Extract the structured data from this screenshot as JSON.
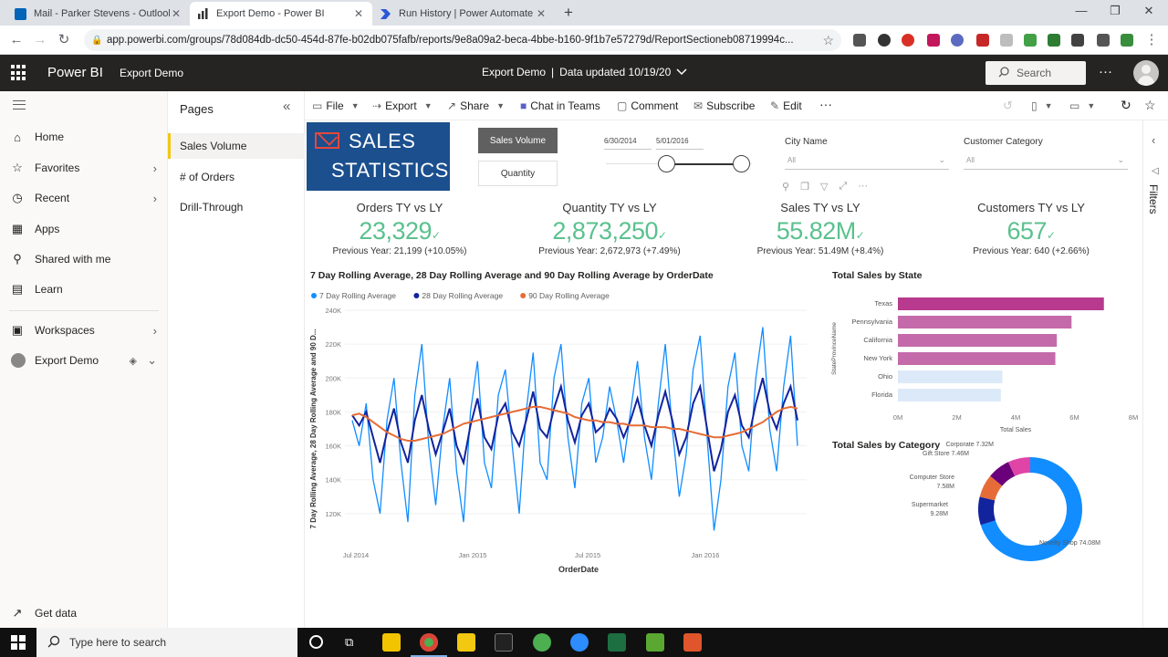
{
  "browser": {
    "tabs": [
      {
        "title": "Mail - Parker Stevens - Outlook",
        "color": "#0364b8"
      },
      {
        "title": "Export Demo - Power BI",
        "color": "#333333"
      },
      {
        "title": "Run History | Power Automate",
        "color": "#2a58d6"
      }
    ],
    "url": "app.powerbi.com/groups/78d084db-dc50-454d-87fe-b02db075fafb/reports/9e8a09a2-beca-4bbe-b160-9f1b7e57279d/ReportSectioneb08719994c..."
  },
  "header": {
    "brand": "Power BI",
    "workspace": "Export Demo",
    "report_title": "Export Demo",
    "data_updated": "Data updated 10/19/20",
    "search_placeholder": "Search"
  },
  "left_nav": {
    "items": [
      {
        "label": "Home",
        "icon": "home-icon"
      },
      {
        "label": "Favorites",
        "icon": "star-icon"
      },
      {
        "label": "Recent",
        "icon": "clock-icon"
      },
      {
        "label": "Apps",
        "icon": "apps-icon"
      },
      {
        "label": "Shared with me",
        "icon": "shared-icon"
      },
      {
        "label": "Learn",
        "icon": "book-icon"
      },
      {
        "label": "Workspaces",
        "icon": "workspaces-icon"
      },
      {
        "label": "Export Demo",
        "icon": "workspace-avatar-icon"
      }
    ],
    "get_data": "Get data"
  },
  "pages": {
    "title": "Pages",
    "items": [
      "Sales Volume",
      "# of Orders",
      "Drill-Through"
    ],
    "active": 0
  },
  "action_bar": {
    "file": "File",
    "export": "Export",
    "share": "Share",
    "chat": "Chat in Teams",
    "comment": "Comment",
    "subscribe": "Subscribe",
    "edit": "Edit"
  },
  "report": {
    "banner_line1": "SALES",
    "banner_line2": "STATISTICS",
    "buttons": {
      "sales_volume": "Sales Volume",
      "quantity": "Quantity"
    },
    "date_slicer": {
      "start": "6/30/2014",
      "end": "5/01/2016"
    },
    "city_slicer": {
      "label": "City Name",
      "value": "All"
    },
    "category_slicer": {
      "label": "Customer Category",
      "value": "All"
    },
    "kpis": [
      {
        "title": "Orders TY vs LY",
        "value": "23,329",
        "sub": "Previous Year: 21,199 (+10.05%)"
      },
      {
        "title": "Quantity TY vs LY",
        "value": "2,873,250",
        "sub": "Previous Year: 2,672,973 (+7.49%)"
      },
      {
        "title": "Sales TY vs LY",
        "value": "55.82M",
        "sub": "Previous Year: 51.49M (+8.4%)"
      },
      {
        "title": "Customers TY vs LY",
        "value": "657",
        "sub": "Previous Year: 640 (+2.66%)"
      }
    ],
    "kpi_color": "#5ac18e"
  },
  "filters_label": "Filters",
  "taskbar": {
    "search_placeholder": "Type here to search"
  },
  "chart_data": [
    {
      "type": "line",
      "title": "7 Day Rolling Average, 28 Day Rolling Average and 90 Day Rolling Average by OrderDate",
      "xlabel": "OrderDate",
      "ylabel": "7 Day Rolling Average, 28 Day Rolling Average and 90 D...",
      "x_ticks": [
        "Jul 2014",
        "Jan 2015",
        "Jul 2015",
        "Jan 2016"
      ],
      "y_ticks": [
        "120K",
        "140K",
        "160K",
        "180K",
        "200K",
        "220K",
        "240K"
      ],
      "ylim": [
        100000,
        240000
      ],
      "legend_position": "top-left",
      "series": [
        {
          "name": "7 Day Rolling Average",
          "color": "#118dff",
          "values": [
            175000,
            160000,
            185000,
            140000,
            120000,
            175000,
            200000,
            150000,
            115000,
            190000,
            220000,
            160000,
            125000,
            170000,
            200000,
            145000,
            115000,
            180000,
            210000,
            150000,
            135000,
            190000,
            205000,
            160000,
            120000,
            180000,
            215000,
            150000,
            140000,
            200000,
            220000,
            165000,
            135000,
            185000,
            200000,
            150000,
            165000,
            195000,
            175000,
            150000,
            180000,
            210000,
            165000,
            140000,
            185000,
            220000,
            170000,
            130000,
            155000,
            205000,
            225000,
            165000,
            110000,
            140000,
            195000,
            215000,
            160000,
            145000,
            200000,
            230000,
            170000,
            145000,
            195000,
            225000,
            160000
          ]
        },
        {
          "name": "28 Day Rolling Average",
          "color": "#12239e",
          "values": [
            178000,
            172000,
            180000,
            165000,
            150000,
            168000,
            182000,
            162000,
            150000,
            175000,
            190000,
            170000,
            155000,
            168000,
            182000,
            160000,
            150000,
            172000,
            188000,
            165000,
            158000,
            178000,
            185000,
            168000,
            160000,
            175000,
            192000,
            170000,
            165000,
            182000,
            195000,
            175000,
            162000,
            178000,
            185000,
            168000,
            172000,
            182000,
            176000,
            165000,
            175000,
            188000,
            172000,
            160000,
            178000,
            192000,
            175000,
            155000,
            165000,
            185000,
            195000,
            170000,
            145000,
            158000,
            180000,
            190000,
            172000,
            165000,
            185000,
            200000,
            180000,
            170000,
            185000,
            195000,
            175000
          ]
        },
        {
          "name": "90 Day Rolling Average",
          "color": "#e66c37",
          "values": [
            178000,
            179000,
            177000,
            174000,
            171000,
            168000,
            166000,
            164000,
            163000,
            163000,
            164000,
            165000,
            166000,
            167000,
            169000,
            171000,
            173000,
            174000,
            175000,
            176000,
            177000,
            178000,
            179000,
            180000,
            181000,
            182000,
            183000,
            183000,
            182000,
            181000,
            180000,
            179000,
            177000,
            176000,
            175000,
            175000,
            174000,
            174000,
            173000,
            173000,
            172000,
            172000,
            172000,
            171000,
            171000,
            171000,
            170000,
            170000,
            169000,
            168000,
            167000,
            166000,
            165000,
            165000,
            166000,
            167000,
            168000,
            170000,
            172000,
            174000,
            177000,
            180000,
            182000,
            183000,
            182000
          ]
        }
      ]
    },
    {
      "type": "bar",
      "orientation": "horizontal",
      "title": "Total Sales by State",
      "xlabel": "Total Sales",
      "ylabel": "StateProvinceName",
      "categories": [
        "Texas",
        "Pennsylvania",
        "California",
        "New York",
        "Ohio",
        "Florida"
      ],
      "values": [
        7000000,
        5900000,
        5400000,
        5350000,
        3550000,
        3500000
      ],
      "colors": [
        "#b83a8f",
        "#c46aab",
        "#c46aab",
        "#c46aab",
        "#dce9f8",
        "#dce9f8"
      ],
      "x_ticks": [
        "0M",
        "2M",
        "4M",
        "6M",
        "8M"
      ],
      "xlim": [
        0,
        8000000
      ]
    },
    {
      "type": "pie",
      "donut": true,
      "title": "Total Sales by Category",
      "slices": [
        {
          "label": "Novelty Shop",
          "value_label": "74.08M",
          "value": 74.08,
          "color": "#118dff"
        },
        {
          "label": "Supermarket",
          "value_label": "9.28M",
          "value": 9.28,
          "color": "#12239e"
        },
        {
          "label": "Computer Store",
          "value_label": "7.58M",
          "value": 7.58,
          "color": "#e66c37"
        },
        {
          "label": "Gift Store",
          "value_label": "7.46M",
          "value": 7.46,
          "color": "#6b007b"
        },
        {
          "label": "Corporate",
          "value_label": "7.32M",
          "value": 7.32,
          "color": "#e044a7"
        }
      ]
    }
  ]
}
